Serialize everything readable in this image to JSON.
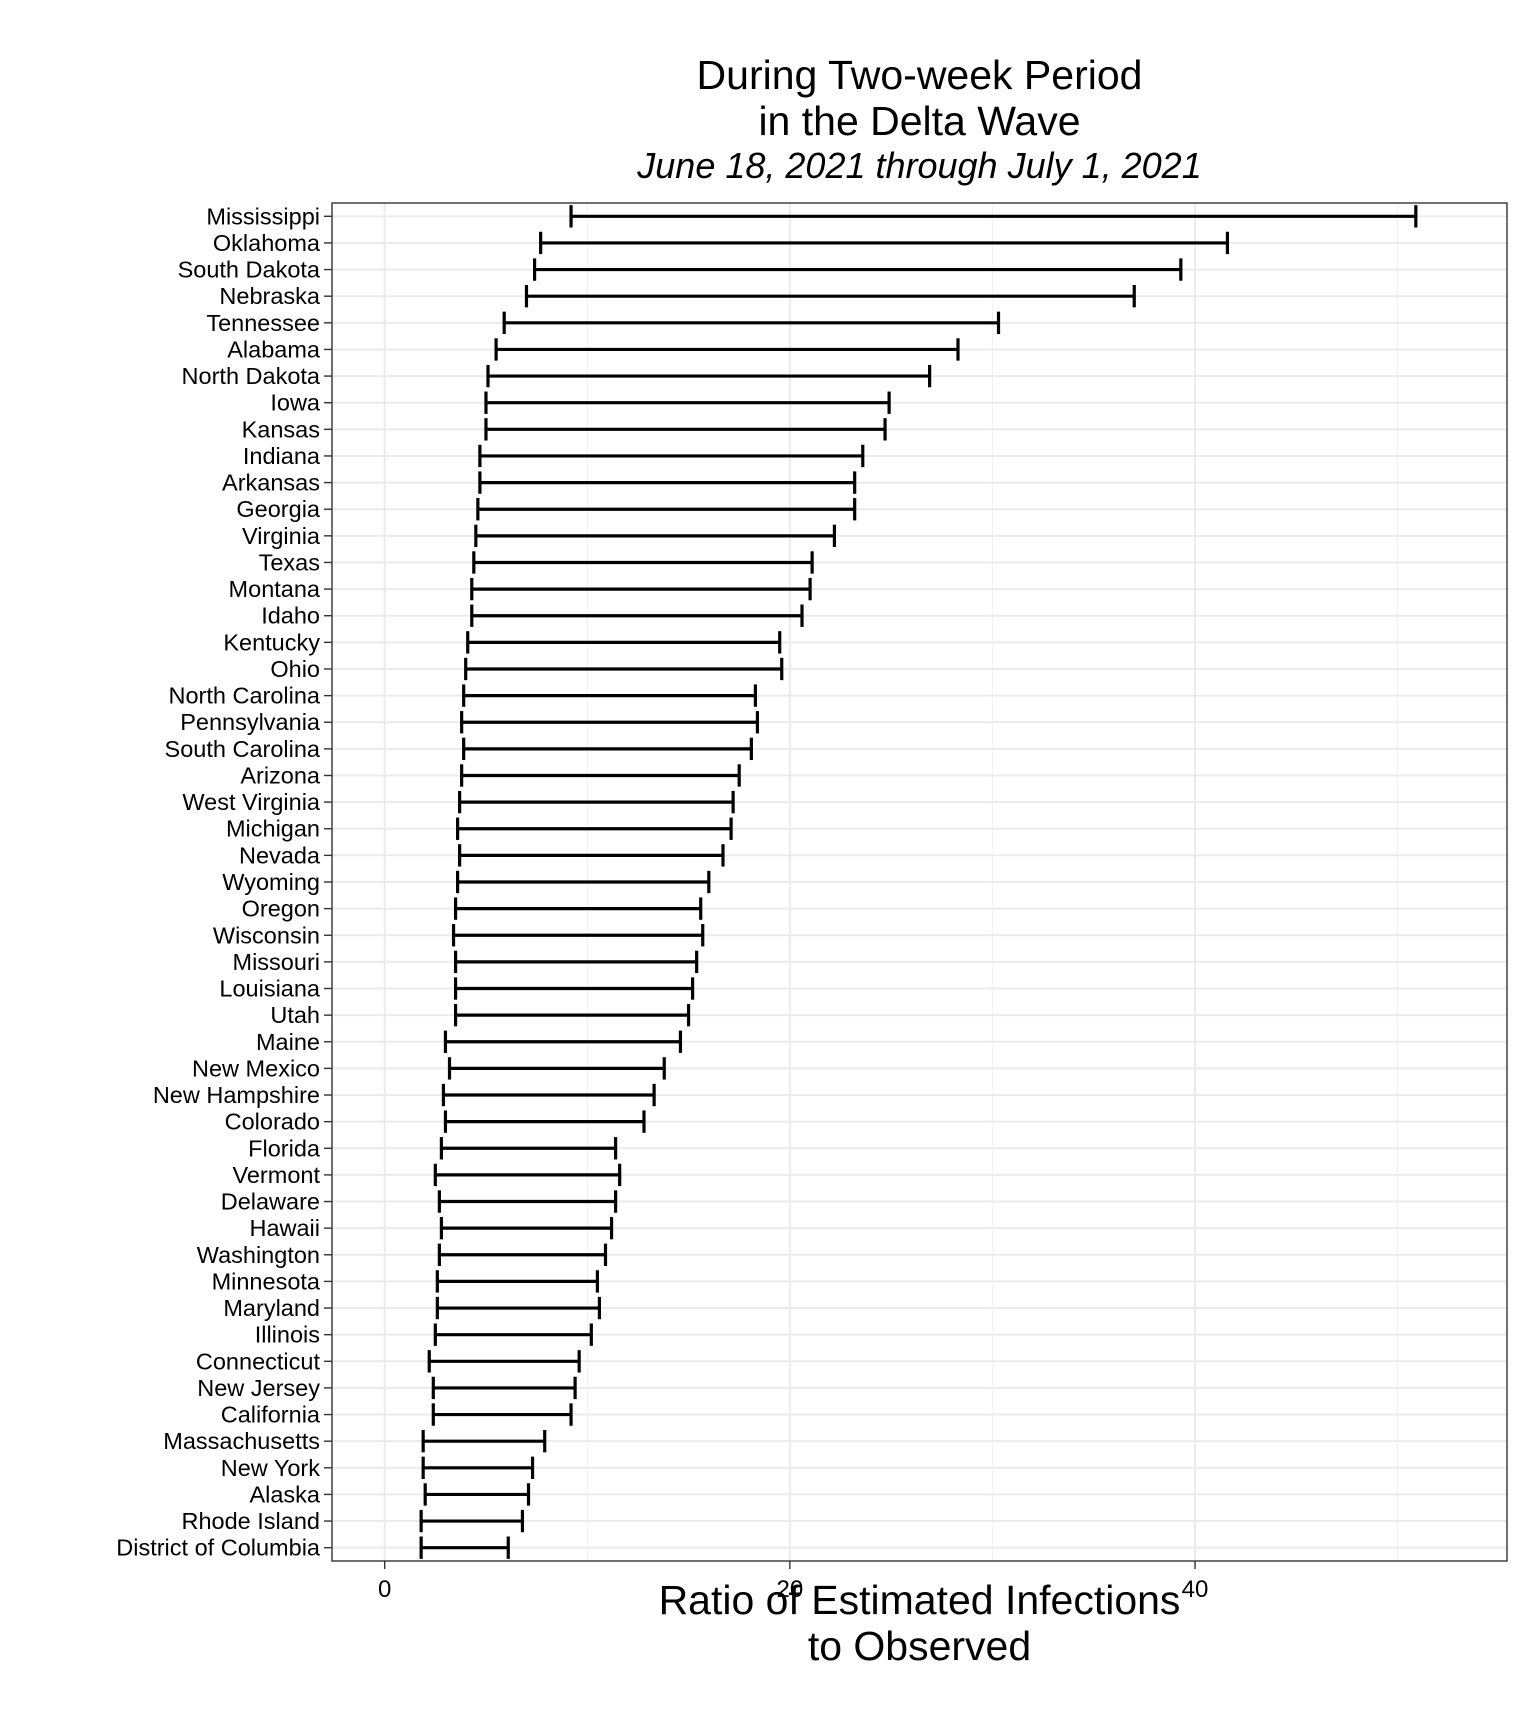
{
  "chart_data": {
    "type": "errorbar",
    "title": [
      "During Two-week Period",
      "in the Delta Wave"
    ],
    "subtitle": "June 18, 2021 through July 1, 2021",
    "xlabel": [
      "Ratio of Estimated Infections",
      "to Observed"
    ],
    "ylabel": "",
    "xlim": [
      -2.6,
      55.4
    ],
    "xticks": [
      0,
      20,
      40
    ],
    "grid": true,
    "categories": [
      "Mississippi",
      "Oklahoma",
      "South Dakota",
      "Nebraska",
      "Tennessee",
      "Alabama",
      "North Dakota",
      "Iowa",
      "Kansas",
      "Indiana",
      "Arkansas",
      "Georgia",
      "Virginia",
      "Texas",
      "Montana",
      "Idaho",
      "Kentucky",
      "Ohio",
      "North Carolina",
      "Pennsylvania",
      "South Carolina",
      "Arizona",
      "West Virginia",
      "Michigan",
      "Nevada",
      "Wyoming",
      "Oregon",
      "Wisconsin",
      "Missouri",
      "Louisiana",
      "Utah",
      "Maine",
      "New Mexico",
      "New Hampshire",
      "Colorado",
      "Florida",
      "Vermont",
      "Delaware",
      "Hawaii",
      "Washington",
      "Minnesota",
      "Maryland",
      "Illinois",
      "Connecticut",
      "New Jersey",
      "California",
      "Massachusetts",
      "New York",
      "Alaska",
      "Rhode Island",
      "District of Columbia"
    ],
    "lower": [
      9.2,
      7.7,
      7.4,
      7.0,
      5.9,
      5.5,
      5.1,
      5.0,
      5.0,
      4.7,
      4.7,
      4.6,
      4.5,
      4.4,
      4.3,
      4.3,
      4.1,
      4.0,
      3.9,
      3.8,
      3.9,
      3.8,
      3.7,
      3.6,
      3.7,
      3.6,
      3.5,
      3.4,
      3.5,
      3.5,
      3.5,
      3.0,
      3.2,
      2.9,
      3.0,
      2.8,
      2.5,
      2.7,
      2.8,
      2.7,
      2.6,
      2.6,
      2.5,
      2.2,
      2.4,
      2.4,
      1.9,
      1.9,
      2.0,
      1.8,
      1.8
    ],
    "upper": [
      50.9,
      41.6,
      39.3,
      37.0,
      30.3,
      28.3,
      26.9,
      24.9,
      24.7,
      23.6,
      23.2,
      23.2,
      22.2,
      21.1,
      21.0,
      20.6,
      19.5,
      19.6,
      18.3,
      18.4,
      18.1,
      17.5,
      17.2,
      17.1,
      16.7,
      16.0,
      15.6,
      15.7,
      15.4,
      15.2,
      15.0,
      14.6,
      13.8,
      13.3,
      12.8,
      11.4,
      11.6,
      11.4,
      11.2,
      10.9,
      10.5,
      10.6,
      10.2,
      9.6,
      9.4,
      9.2,
      7.9,
      7.3,
      7.1,
      6.8,
      6.1
    ]
  }
}
